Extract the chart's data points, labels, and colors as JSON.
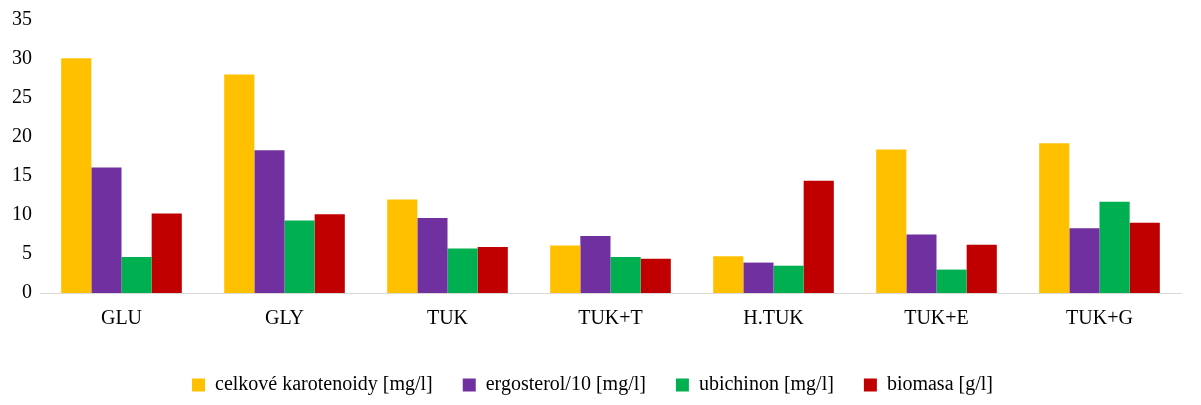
{
  "chart_data": {
    "type": "bar",
    "categories": [
      "GLU",
      "GLY",
      "TUK",
      "TUK+T",
      "H.TUK",
      "TUK+E",
      "TUK+G"
    ],
    "series": [
      {
        "name": "celkové karotenoidy [mg/l]",
        "color": "#ffc000",
        "values": [
          30.1,
          28.0,
          12.0,
          6.1,
          4.7,
          18.4,
          19.2
        ]
      },
      {
        "name": "ergosterol/10 [mg/l]",
        "color": "#7030a0",
        "values": [
          16.1,
          18.3,
          9.6,
          7.3,
          3.9,
          7.5,
          8.3
        ]
      },
      {
        "name": "ubichinon [mg/l]",
        "color": "#00b050",
        "values": [
          4.6,
          9.3,
          5.7,
          4.6,
          3.5,
          3.0,
          11.7
        ]
      },
      {
        "name": "biomasa [g/l]",
        "color": "#c00000",
        "values": [
          10.2,
          10.1,
          5.9,
          4.4,
          14.4,
          6.2,
          9.0
        ]
      }
    ],
    "ylim": [
      0,
      35
    ],
    "yticks": [
      0,
      5,
      10,
      15,
      20,
      25,
      30,
      35
    ],
    "grid": false,
    "legend": "bottom"
  }
}
